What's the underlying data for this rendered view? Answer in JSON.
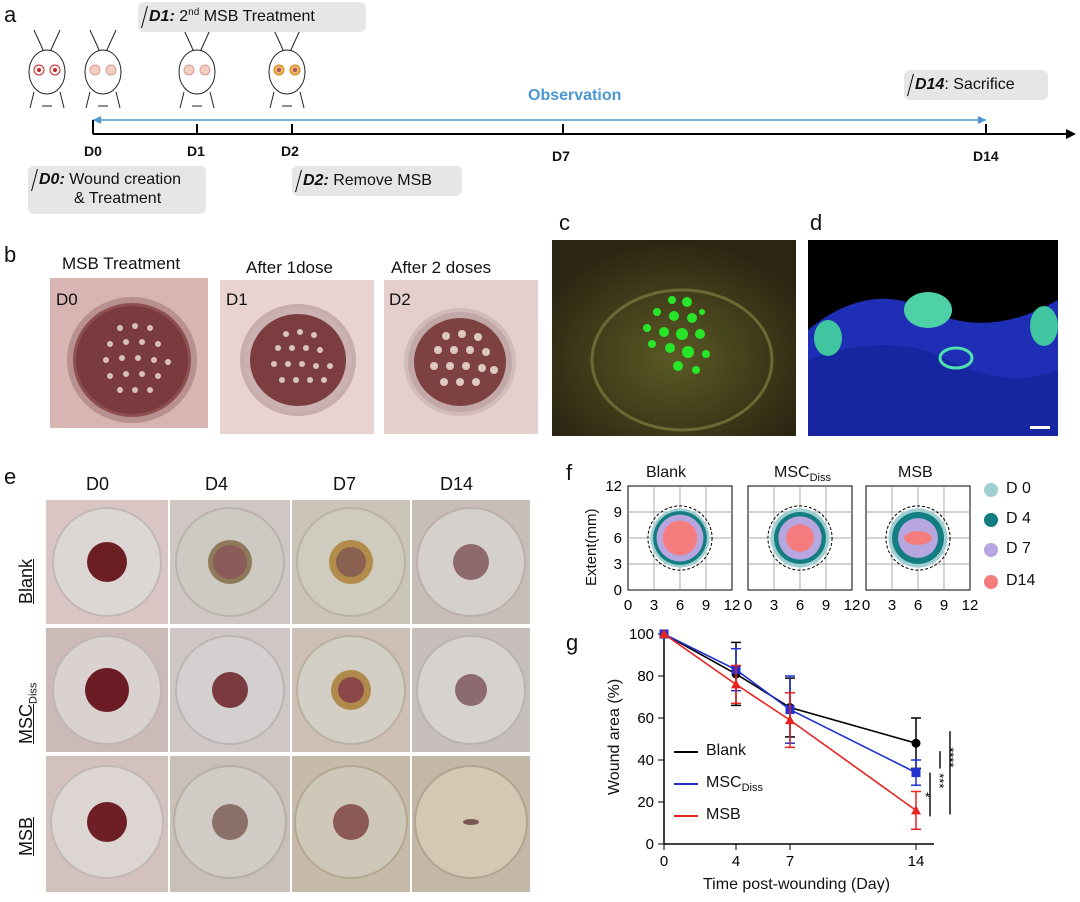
{
  "panels": {
    "a": "a",
    "b": "b",
    "c": "c",
    "d": "d",
    "e": "e",
    "f": "f",
    "g": "g"
  },
  "timeline": {
    "d1_tag": "D1:",
    "d1_sup": "nd",
    "d1_pre": "2",
    "d1_text": " MSB Treatment",
    "d14_tag": "D14",
    "d14_text": ": Sacrifice",
    "d0_tag": "D0:",
    "d0_text1": " Wound creation",
    "d0_text2": "& Treatment",
    "d2_tag": "D2:",
    "d2_text": " Remove MSB",
    "observation": "Observation",
    "days": [
      "D0",
      "D1",
      "D2",
      "D7",
      "D14"
    ]
  },
  "panel_b": {
    "captions": [
      "MSB Treatment",
      "After 1dose",
      "After 2 doses"
    ],
    "days": [
      "D0",
      "D1",
      "D2"
    ]
  },
  "panel_e": {
    "columns": [
      "D0",
      "D4",
      "D7",
      "D14"
    ],
    "rows": [
      "Blank",
      "MSC",
      "MSB"
    ],
    "row_sub": "Diss"
  },
  "panel_f": {
    "titles": [
      "Blank",
      "MSC",
      "MSB"
    ],
    "title_sub": "Diss",
    "ylabel": "Extent(mm)",
    "yticks": [
      "0",
      "3",
      "6",
      "9",
      "12"
    ],
    "xticks": [
      "0",
      "3",
      "6",
      "9",
      "12"
    ],
    "legend": [
      {
        "label": "D 0",
        "color": "#9ecfd2"
      },
      {
        "label": "D 4",
        "color": "#137d82"
      },
      {
        "label": "D 7",
        "color": "#b8a6e0"
      },
      {
        "label": "D14",
        "color": "#f47c7c"
      }
    ]
  },
  "chart_data": {
    "type": "line",
    "x": [
      0,
      4,
      7,
      14
    ],
    "xlabel": "Time post-wounding (Day)",
    "ylabel": "Wound area (%)",
    "ylim": [
      0,
      100
    ],
    "yticks": [
      "0",
      "20",
      "40",
      "60",
      "80",
      "100"
    ],
    "xticks": [
      "0",
      "4",
      "7",
      "14"
    ],
    "series": [
      {
        "name": "Blank",
        "color": "#000000",
        "marker": "circle",
        "values": [
          100,
          81,
          65,
          48
        ],
        "err": [
          0,
          15,
          14,
          12
        ]
      },
      {
        "name": "MSC",
        "name_sub": "Diss",
        "color": "#1f2fd0",
        "marker": "square",
        "values": [
          100,
          83,
          64,
          34
        ],
        "err": [
          0,
          10,
          16,
          6
        ]
      },
      {
        "name": "MSB",
        "color": "#e8231f",
        "marker": "triangle",
        "values": [
          100,
          76,
          59,
          16
        ],
        "err": [
          0,
          9,
          13,
          9
        ]
      }
    ],
    "significance": [
      "*",
      "***",
      "****"
    ]
  }
}
